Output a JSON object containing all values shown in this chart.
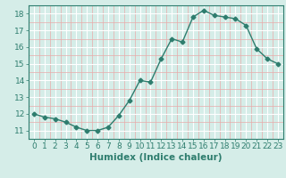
{
  "x": [
    0,
    1,
    2,
    3,
    4,
    5,
    6,
    7,
    8,
    9,
    10,
    11,
    12,
    13,
    14,
    15,
    16,
    17,
    18,
    19,
    20,
    21,
    22,
    23
  ],
  "y": [
    12.0,
    11.8,
    11.7,
    11.5,
    11.2,
    11.0,
    11.0,
    11.2,
    11.9,
    12.8,
    14.0,
    13.9,
    15.3,
    16.5,
    16.3,
    17.8,
    18.2,
    17.9,
    17.8,
    17.7,
    17.3,
    15.9,
    15.3,
    15.0
  ],
  "line_color": "#2e7d6e",
  "marker": "D",
  "markersize": 2.5,
  "linewidth": 1.0,
  "bg_color": "#d5ede8",
  "grid_major_color": "#ffffff",
  "grid_minor_color": "#e8aaaa",
  "xlabel": "Humidex (Indice chaleur)",
  "xlim": [
    -0.5,
    23.5
  ],
  "ylim": [
    10.5,
    18.5
  ],
  "yticks": [
    11,
    12,
    13,
    14,
    15,
    16,
    17,
    18
  ],
  "xticks": [
    0,
    1,
    2,
    3,
    4,
    5,
    6,
    7,
    8,
    9,
    10,
    11,
    12,
    13,
    14,
    15,
    16,
    17,
    18,
    19,
    20,
    21,
    22,
    23
  ],
  "xlabel_fontsize": 7.5,
  "tick_fontsize": 6.5,
  "tick_color": "#2e7d6e",
  "axis_color": "#2e7d6e"
}
